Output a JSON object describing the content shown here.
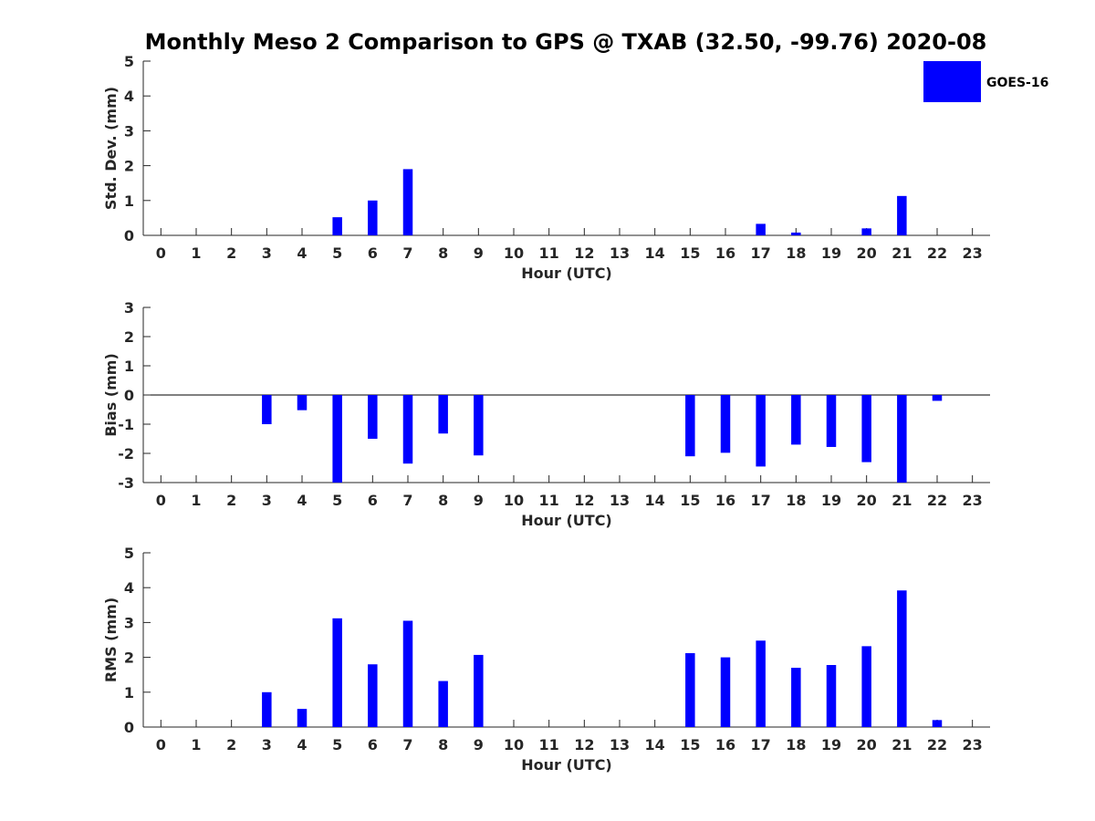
{
  "title": "Monthly Meso 2 Comparison to GPS @ TXAB (32.50, -99.76) 2020-08",
  "legend": {
    "label": "GOES-16",
    "color": "#0000ff",
    "placement": "top-right"
  },
  "colors": {
    "bar": "#0000ff",
    "axis": "#262626",
    "zero_line": "#000000",
    "background": "#ffffff"
  },
  "chart_data": [
    {
      "type": "bar",
      "ylabel": "Std. Dev. (mm)",
      "xlabel": "Hour (UTC)",
      "ylim": [
        0,
        5
      ],
      "yticks": [
        0,
        1,
        2,
        3,
        4,
        5
      ],
      "grid": false,
      "categories": [
        0,
        1,
        2,
        3,
        4,
        5,
        6,
        7,
        8,
        9,
        10,
        11,
        12,
        13,
        14,
        15,
        16,
        17,
        18,
        19,
        20,
        21,
        22,
        23
      ],
      "series": [
        {
          "name": "GOES-16",
          "values": [
            null,
            null,
            null,
            null,
            null,
            0.52,
            1.0,
            1.9,
            null,
            null,
            null,
            null,
            null,
            null,
            null,
            null,
            null,
            0.33,
            0.08,
            null,
            0.2,
            1.13,
            null,
            null
          ]
        }
      ]
    },
    {
      "type": "bar",
      "ylabel": "Bias (mm)",
      "xlabel": "Hour (UTC)",
      "ylim": [
        -3,
        3
      ],
      "yticks": [
        -3,
        -2,
        -1,
        0,
        1,
        2,
        3
      ],
      "grid": false,
      "zero_line": true,
      "categories": [
        0,
        1,
        2,
        3,
        4,
        5,
        6,
        7,
        8,
        9,
        10,
        11,
        12,
        13,
        14,
        15,
        16,
        17,
        18,
        19,
        20,
        21,
        22,
        23
      ],
      "series": [
        {
          "name": "GOES-16",
          "values": [
            null,
            null,
            null,
            -1.0,
            -0.52,
            -3.0,
            -1.5,
            -2.35,
            -1.32,
            -2.07,
            null,
            null,
            null,
            null,
            null,
            -2.1,
            -1.98,
            -2.45,
            -1.7,
            -1.78,
            -2.3,
            -3.0,
            -0.2,
            null
          ]
        }
      ]
    },
    {
      "type": "bar",
      "ylabel": "RMS (mm)",
      "xlabel": "Hour (UTC)",
      "ylim": [
        0,
        5
      ],
      "yticks": [
        0,
        1,
        2,
        3,
        4,
        5
      ],
      "grid": false,
      "categories": [
        0,
        1,
        2,
        3,
        4,
        5,
        6,
        7,
        8,
        9,
        10,
        11,
        12,
        13,
        14,
        15,
        16,
        17,
        18,
        19,
        20,
        21,
        22,
        23
      ],
      "series": [
        {
          "name": "GOES-16",
          "values": [
            null,
            null,
            null,
            1.0,
            0.52,
            3.12,
            1.8,
            3.05,
            1.32,
            2.07,
            null,
            null,
            null,
            null,
            null,
            2.12,
            2.0,
            2.48,
            1.7,
            1.78,
            2.32,
            3.92,
            0.2,
            null
          ]
        }
      ]
    }
  ]
}
